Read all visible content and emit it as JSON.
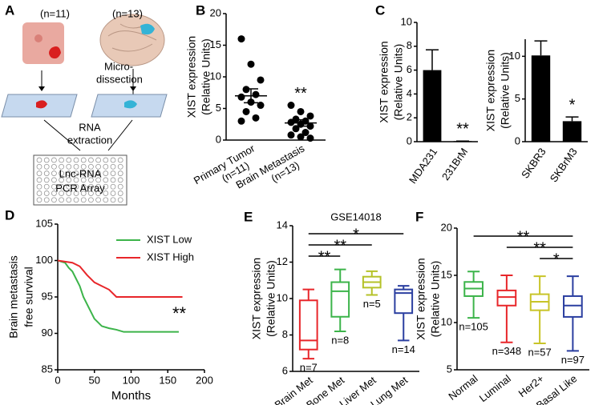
{
  "panel_labels": [
    "A",
    "B",
    "C",
    "D",
    "E",
    "F"
  ],
  "diagram": {
    "left_count": "(n=11)",
    "right_count": "(n=13)",
    "step1": [
      "Micro-",
      "dissection"
    ],
    "step2": [
      "RNA",
      "extraction"
    ],
    "step3": [
      "Lnc-RNA",
      "PCR Array"
    ]
  },
  "chart_data": [
    {
      "type": "dot",
      "ylabel": [
        "XIST expression",
        "(Relative Units)"
      ],
      "categories": [
        "Primary Tumor",
        "Brain Metastasis"
      ],
      "category_notes": [
        "(n=11)",
        "(n=13)"
      ],
      "groups": [
        [
          16,
          12,
          9.5,
          8,
          7.2,
          6.8,
          6,
          5.5,
          4.5,
          3.5,
          3
        ],
        [
          5.5,
          4.5,
          3.8,
          3.3,
          3,
          2.8,
          2.5,
          2.2,
          1.8,
          1.2,
          0.8,
          0.5,
          0.3
        ]
      ],
      "means": [
        7,
        2.7
      ],
      "sems": [
        1.1,
        0.5
      ],
      "color": "#000000",
      "ylim": [
        0,
        20
      ],
      "yticks": [
        0,
        5,
        10,
        15,
        20
      ],
      "annotations": [
        {
          "category": "Brain Metastasis",
          "text": "**"
        }
      ]
    },
    {
      "type": "bar",
      "ylabel": [
        "XIST expression",
        "(Relative Units)"
      ],
      "categories": [
        "MDA231",
        "231BrM"
      ],
      "values": [
        6,
        0.05
      ],
      "errors": [
        1.7,
        0
      ],
      "color": "#000000",
      "ylim": [
        0,
        10
      ],
      "yticks": [
        0,
        2,
        4,
        6,
        8,
        10
      ],
      "annotations": [
        {
          "category": "231BrM",
          "text": "**"
        }
      ]
    },
    {
      "type": "bar",
      "ylabel": [
        "XIST expression",
        "(Relative Units)"
      ],
      "categories": [
        "SKBR3",
        "SKBrM3"
      ],
      "values": [
        10.1,
        2.4
      ],
      "errors": [
        1.7,
        0.5
      ],
      "color": "#000000",
      "ylim": [
        0,
        12
      ],
      "yticks": [
        0,
        5,
        10
      ],
      "annotations": [
        {
          "category": "SKBrM3",
          "text": "*"
        }
      ]
    },
    {
      "type": "line",
      "ylabel": [
        "Brain metastasis",
        "free survival"
      ],
      "xlabel": "Months",
      "xlim": [
        0,
        200
      ],
      "xticks": [
        0,
        50,
        100,
        150,
        200
      ],
      "ylim": [
        85,
        105
      ],
      "yticks": [
        85,
        90,
        95,
        100,
        105
      ],
      "legend": "upper right",
      "series": [
        {
          "name": "XIST Low",
          "color": "#3cb44a",
          "x": [
            0,
            10,
            15,
            20,
            25,
            30,
            35,
            40,
            45,
            50,
            55,
            60,
            70,
            80,
            90,
            100,
            165
          ],
          "values": [
            100,
            99.7,
            99,
            98.5,
            97.5,
            96.5,
            95,
            94,
            93,
            92,
            91.5,
            91,
            90.7,
            90.5,
            90.2,
            90.2,
            90.2
          ]
        },
        {
          "name": "XIST High",
          "color": "#e8262a",
          "x": [
            0,
            20,
            30,
            40,
            50,
            60,
            70,
            80,
            100,
            170
          ],
          "values": [
            100,
            99.7,
            99.2,
            98,
            97,
            96.5,
            96,
            95,
            95,
            95
          ]
        }
      ],
      "annotations": [
        {
          "text": "**"
        }
      ]
    },
    {
      "type": "box",
      "title": "GSE14018",
      "ylabel": [
        "XIST expression",
        "(Relative Units)"
      ],
      "categories": [
        "Brain Met",
        "Bone Met",
        "Liver Met",
        "Lung Met"
      ],
      "colors": [
        "#e8262a",
        "#3cb44a",
        "#b5c228",
        "#2b3fa0"
      ],
      "boxes": [
        {
          "min": 6.7,
          "q1": 7.2,
          "median": 7.7,
          "q3": 9.9,
          "max": 10.5
        },
        {
          "min": 8.2,
          "q1": 9.0,
          "median": 10.4,
          "q3": 10.9,
          "max": 11.6
        },
        {
          "min": 10.2,
          "q1": 10.6,
          "median": 10.9,
          "q3": 11.2,
          "max": 11.5
        },
        {
          "min": 7.7,
          "q1": 9.2,
          "median": 10.3,
          "q3": 10.5,
          "max": 10.7
        }
      ],
      "n_labels": [
        "n=7",
        "n=8",
        "n=5",
        "n=14"
      ],
      "ylim": [
        6,
        14
      ],
      "yticks": [
        6,
        8,
        10,
        12,
        14
      ],
      "comparisons": [
        {
          "groups": [
            "Brain Met",
            "Lung Met"
          ],
          "text": "*"
        },
        {
          "groups": [
            "Brain Met",
            "Liver Met"
          ],
          "text": "**"
        },
        {
          "groups": [
            "Brain Met",
            "Bone Met"
          ],
          "text": "**"
        }
      ]
    },
    {
      "type": "box",
      "ylabel": [
        "XIST expression",
        "(Relative Units)"
      ],
      "categories": [
        "Normal",
        "Luminal",
        "Her2+",
        "Basal Like"
      ],
      "colors": [
        "#3cb44a",
        "#e8262a",
        "#c8c428",
        "#2b3fa0"
      ],
      "boxes": [
        {
          "min": 10.5,
          "q1": 12.8,
          "median": 13.6,
          "q3": 14.3,
          "max": 15.4
        },
        {
          "min": 7.9,
          "q1": 11.8,
          "median": 12.7,
          "q3": 13.4,
          "max": 15.0
        },
        {
          "min": 7.8,
          "q1": 11.3,
          "median": 12.2,
          "q3": 13.0,
          "max": 14.9
        },
        {
          "min": 7.0,
          "q1": 10.6,
          "median": 11.8,
          "q3": 12.8,
          "max": 14.9
        }
      ],
      "n_labels": [
        "n=105",
        "n=348",
        "n=57",
        "n=97"
      ],
      "ylim": [
        5,
        20
      ],
      "yticks": [
        5,
        10,
        15,
        20
      ],
      "comparisons": [
        {
          "groups": [
            "Normal",
            "Basal Like"
          ],
          "text": "**"
        },
        {
          "groups": [
            "Luminal",
            "Basal Like"
          ],
          "text": "**"
        },
        {
          "groups": [
            "Her2+",
            "Basal Like"
          ],
          "text": "*"
        }
      ]
    }
  ]
}
